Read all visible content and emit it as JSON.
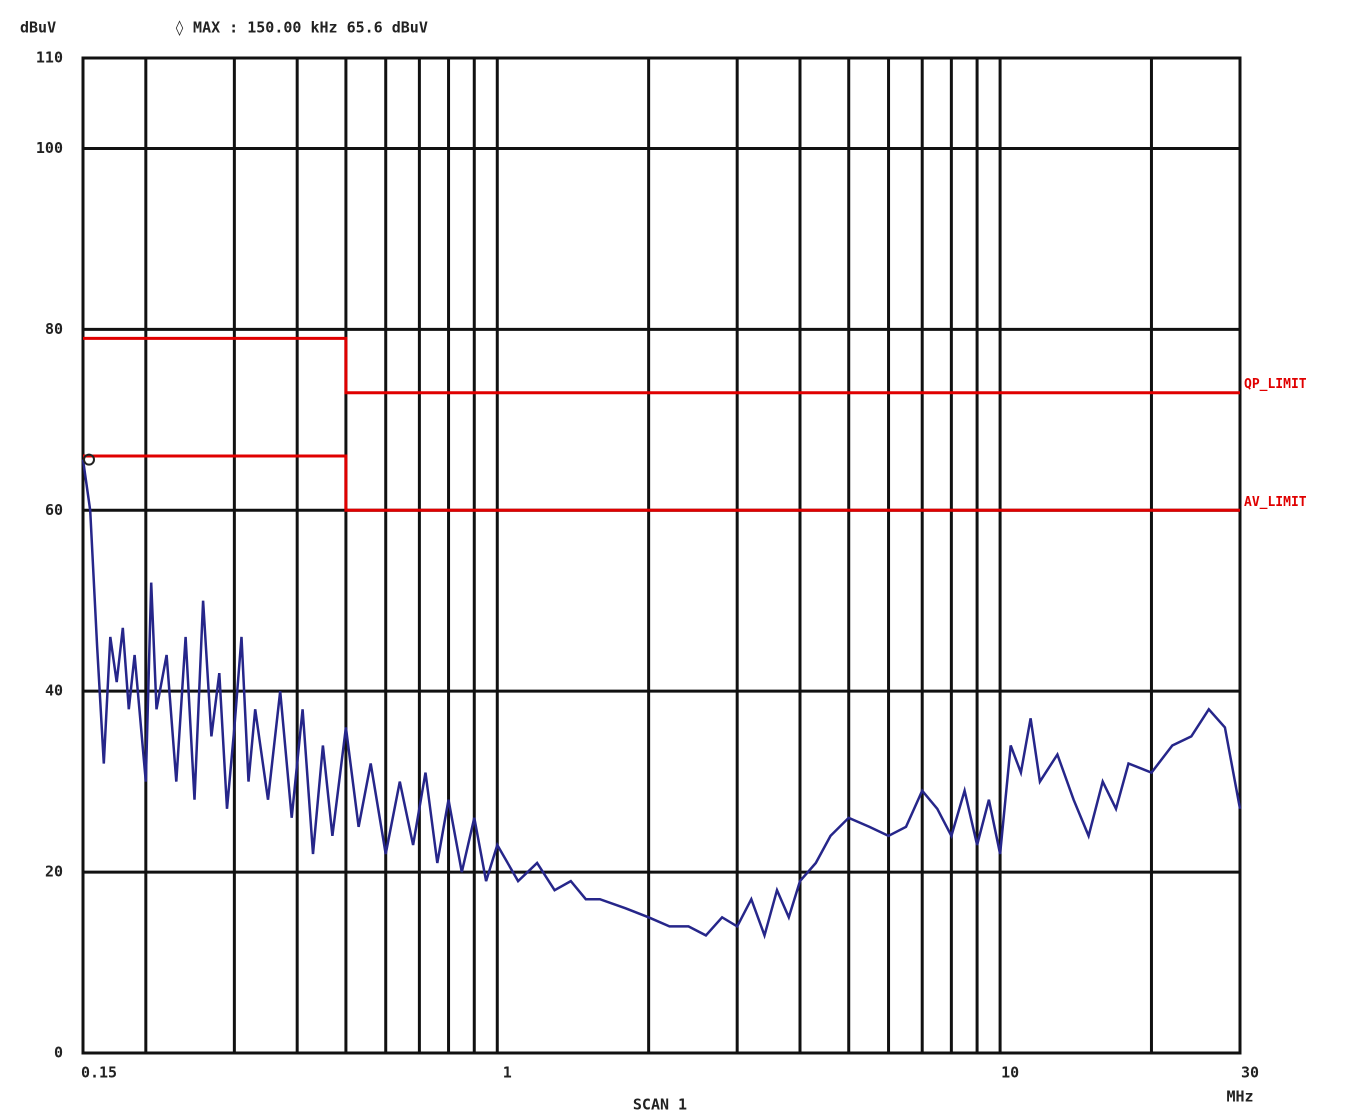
{
  "chart_data": {
    "type": "line",
    "y_label": "dBuV",
    "marker_readout": "◊ MAX : 150.00 kHz 65.6 dBuV",
    "x_label": "SCAN 1",
    "x_unit": "MHz",
    "x_scale": "log",
    "grid": true,
    "xlim": [
      0.15,
      30
    ],
    "xticks": [
      {
        "value": 0.15,
        "label": "0.15"
      },
      1,
      10,
      30
    ],
    "x_minor_grid": [
      0.2,
      0.3,
      0.4,
      0.5,
      0.6,
      0.7,
      0.8,
      0.9,
      2,
      3,
      4,
      5,
      6,
      7,
      8,
      9,
      20
    ],
    "ylim": [
      0,
      110
    ],
    "yticks": [
      0,
      20,
      40,
      60,
      80,
      100,
      110
    ],
    "series": [
      {
        "color": "#26268a",
        "label_at_end": false,
        "x": [
          0.15,
          0.155,
          0.16,
          0.165,
          0.17,
          0.175,
          0.18,
          0.185,
          0.19,
          0.2,
          0.205,
          0.21,
          0.22,
          0.23,
          0.24,
          0.25,
          0.26,
          0.27,
          0.28,
          0.29,
          0.3,
          0.31,
          0.32,
          0.33,
          0.35,
          0.37,
          0.39,
          0.41,
          0.43,
          0.45,
          0.47,
          0.5,
          0.53,
          0.56,
          0.6,
          0.64,
          0.68,
          0.72,
          0.76,
          0.8,
          0.85,
          0.9,
          0.95,
          1,
          1.1,
          1.2,
          1.3,
          1.4,
          1.5,
          1.6,
          1.8,
          2,
          2.2,
          2.4,
          2.6,
          2.8,
          3,
          3.2,
          3.4,
          3.6,
          3.8,
          4,
          4.3,
          4.6,
          5,
          5.5,
          6,
          6.5,
          7,
          7.5,
          8,
          8.5,
          9,
          9.5,
          10,
          10.5,
          11,
          11.5,
          12,
          13,
          14,
          15,
          16,
          17,
          18,
          20,
          22,
          24,
          26,
          28,
          30
        ],
        "values": [
          65.6,
          60,
          45,
          32,
          46,
          41,
          47,
          38,
          44,
          30,
          52,
          38,
          44,
          30,
          46,
          28,
          50,
          35,
          42,
          27,
          36,
          46,
          30,
          38,
          28,
          40,
          26,
          38,
          22,
          34,
          24,
          36,
          25,
          32,
          22,
          30,
          23,
          31,
          21,
          28,
          20,
          26,
          19,
          23,
          19,
          21,
          18,
          19,
          17,
          17,
          16,
          15,
          14,
          14,
          13,
          15,
          14,
          17,
          13,
          18,
          15,
          19,
          21,
          24,
          26,
          25,
          24,
          25,
          29,
          27,
          24,
          29,
          23,
          28,
          22,
          34,
          31,
          37,
          30,
          33,
          28,
          24,
          30,
          27,
          32,
          31,
          34,
          35,
          38,
          36,
          27
        ]
      },
      {
        "name": "QP_LIMIT",
        "color": "#e00000",
        "x": [
          0.15,
          0.5,
          0.5,
          30
        ],
        "values": [
          79,
          79,
          73,
          73
        ]
      },
      {
        "name": "AV_LIMIT",
        "color": "#e00000",
        "x": [
          0.15,
          0.5,
          0.5,
          30
        ],
        "values": [
          66,
          66,
          60,
          60
        ]
      }
    ]
  }
}
